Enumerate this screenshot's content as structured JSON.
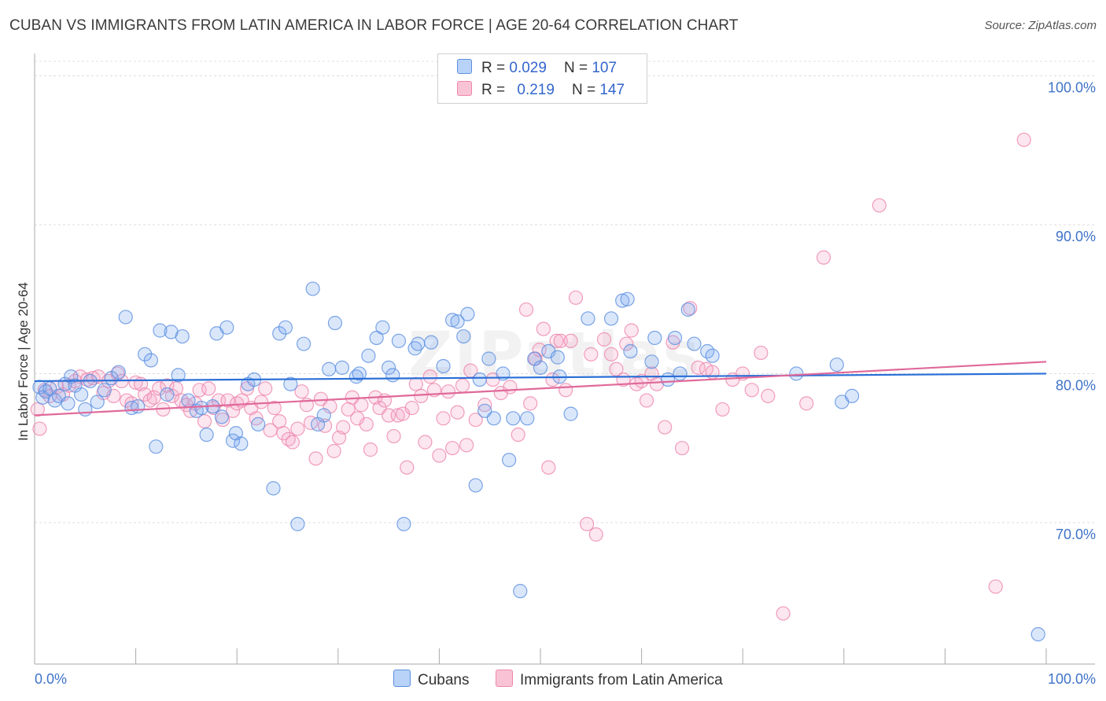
{
  "chart_data": {
    "type": "scatter",
    "title": "CUBAN VS IMMIGRANTS FROM LATIN AMERICA IN LABOR FORCE | AGE 20-64 CORRELATION CHART",
    "source": "Source: ZipAtlas.com",
    "ylabel": "In Labor Force | Age 20-64",
    "watermark": "ZIPatlas",
    "xlim": [
      0,
      100
    ],
    "ylim": [
      60.5,
      101.5
    ],
    "x_tick_labels": [
      "0.0%",
      "100.0%"
    ],
    "y_ticks": [
      {
        "value": 100,
        "label": "100.0%"
      },
      {
        "value": 90,
        "label": "90.0%"
      },
      {
        "value": 80,
        "label": "80.0%"
      },
      {
        "value": 70,
        "label": "70.0%"
      }
    ],
    "grid": true,
    "legend": {
      "placement": "top-center",
      "rows": [
        {
          "r_label": "R =",
          "r_value": "0.029",
          "n_label": "N =",
          "n_value": "107"
        },
        {
          "r_label": "R =",
          "r_value": "0.219",
          "n_label": "N =",
          "n_value": "147"
        }
      ]
    },
    "series": [
      {
        "name": "Cubans",
        "color": "#7aaaf0",
        "stroke": "#5b8fe0",
        "line_color": "#2a6fd6",
        "trend": {
          "x": [
            0,
            100
          ],
          "y": [
            79.5,
            80.0
          ]
        },
        "points": [
          [
            0.5,
            79.1
          ],
          [
            0.8,
            78.4
          ],
          [
            1.1,
            78.8
          ],
          [
            1.5,
            79.0
          ],
          [
            2.0,
            78.2
          ],
          [
            2.4,
            78.5
          ],
          [
            3.0,
            79.3
          ],
          [
            3.3,
            78.0
          ],
          [
            3.6,
            79.8
          ],
          [
            4.0,
            79.2
          ],
          [
            4.6,
            78.6
          ],
          [
            5.0,
            77.6
          ],
          [
            5.5,
            79.5
          ],
          [
            6.2,
            78.1
          ],
          [
            6.9,
            78.9
          ],
          [
            7.6,
            79.7
          ],
          [
            8.3,
            80.1
          ],
          [
            9.0,
            83.8
          ],
          [
            9.6,
            77.7
          ],
          [
            10.2,
            77.8
          ],
          [
            10.9,
            81.3
          ],
          [
            11.5,
            80.9
          ],
          [
            12.0,
            75.1
          ],
          [
            12.4,
            82.9
          ],
          [
            13.1,
            78.6
          ],
          [
            13.5,
            82.8
          ],
          [
            14.2,
            79.9
          ],
          [
            14.6,
            82.5
          ],
          [
            15.2,
            78.2
          ],
          [
            16.0,
            77.5
          ],
          [
            16.5,
            77.7
          ],
          [
            17.0,
            75.9
          ],
          [
            17.6,
            77.8
          ],
          [
            18.0,
            82.7
          ],
          [
            18.5,
            77.1
          ],
          [
            19.0,
            83.1
          ],
          [
            19.6,
            75.5
          ],
          [
            19.9,
            76.0
          ],
          [
            20.4,
            75.3
          ],
          [
            21.1,
            79.3
          ],
          [
            21.7,
            79.6
          ],
          [
            22.1,
            76.6
          ],
          [
            23.6,
            72.3
          ],
          [
            24.2,
            82.7
          ],
          [
            24.8,
            83.1
          ],
          [
            25.3,
            79.3
          ],
          [
            26.0,
            69.9
          ],
          [
            26.6,
            82.0
          ],
          [
            27.5,
            85.7
          ],
          [
            28.0,
            76.6
          ],
          [
            28.6,
            77.2
          ],
          [
            29.1,
            80.3
          ],
          [
            29.7,
            83.4
          ],
          [
            30.4,
            80.4
          ],
          [
            31.8,
            79.8
          ],
          [
            32.1,
            80.0
          ],
          [
            33.0,
            81.2
          ],
          [
            33.8,
            82.4
          ],
          [
            34.4,
            83.1
          ],
          [
            35.0,
            80.4
          ],
          [
            35.4,
            79.9
          ],
          [
            36.0,
            82.2
          ],
          [
            36.5,
            69.9
          ],
          [
            37.6,
            81.7
          ],
          [
            37.9,
            82.0
          ],
          [
            39.2,
            82.1
          ],
          [
            40.4,
            80.5
          ],
          [
            41.3,
            83.6
          ],
          [
            41.8,
            83.5
          ],
          [
            42.4,
            82.5
          ],
          [
            42.8,
            84.0
          ],
          [
            43.6,
            72.5
          ],
          [
            44.0,
            79.6
          ],
          [
            44.5,
            77.5
          ],
          [
            44.9,
            81.0
          ],
          [
            45.4,
            77.0
          ],
          [
            46.3,
            80.0
          ],
          [
            46.9,
            74.2
          ],
          [
            47.3,
            77.0
          ],
          [
            48.0,
            65.4
          ],
          [
            48.7,
            77.0
          ],
          [
            49.4,
            81.0
          ],
          [
            50.0,
            80.4
          ],
          [
            50.8,
            81.5
          ],
          [
            51.7,
            81.1
          ],
          [
            51.9,
            79.8
          ],
          [
            53.0,
            77.3
          ],
          [
            54.7,
            83.7
          ],
          [
            57.0,
            83.7
          ],
          [
            58.1,
            84.9
          ],
          [
            58.6,
            85.0
          ],
          [
            58.9,
            81.5
          ],
          [
            61.0,
            80.8
          ],
          [
            61.3,
            82.4
          ],
          [
            62.6,
            79.6
          ],
          [
            63.3,
            82.4
          ],
          [
            63.8,
            80.0
          ],
          [
            64.6,
            84.3
          ],
          [
            65.2,
            82.0
          ],
          [
            66.5,
            81.5
          ],
          [
            67.0,
            81.2
          ],
          [
            75.3,
            80.0
          ],
          [
            79.3,
            80.6
          ],
          [
            79.8,
            78.1
          ],
          [
            80.8,
            78.5
          ],
          [
            99.2,
            62.5
          ]
        ]
      },
      {
        "name": "Immigrants from Latin America",
        "color": "#f6a6c4",
        "stroke": "#ee86ac",
        "line_color": "#e0699a",
        "trend": {
          "x": [
            0,
            100
          ],
          "y": [
            77.2,
            80.8
          ]
        },
        "points": [
          [
            0.3,
            77.6
          ],
          [
            0.5,
            76.3
          ],
          [
            1.0,
            78.9
          ],
          [
            1.5,
            78.5
          ],
          [
            2.2,
            79.1
          ],
          [
            2.8,
            78.6
          ],
          [
            3.4,
            79.2
          ],
          [
            4.0,
            79.5
          ],
          [
            4.5,
            79.8
          ],
          [
            5.2,
            79.6
          ],
          [
            5.8,
            79.7
          ],
          [
            6.3,
            79.8
          ],
          [
            6.8,
            78.7
          ],
          [
            7.3,
            79.5
          ],
          [
            7.8,
            78.5
          ],
          [
            8.2,
            80.0
          ],
          [
            8.6,
            79.5
          ],
          [
            9.1,
            78.2
          ],
          [
            9.6,
            78.0
          ],
          [
            10.0,
            79.4
          ],
          [
            10.5,
            79.3
          ],
          [
            10.9,
            78.6
          ],
          [
            11.4,
            78.2
          ],
          [
            11.8,
            78.4
          ],
          [
            12.3,
            79.0
          ],
          [
            12.7,
            77.6
          ],
          [
            13.1,
            79.2
          ],
          [
            13.6,
            78.5
          ],
          [
            14.0,
            79.0
          ],
          [
            14.5,
            78.2
          ],
          [
            15.0,
            77.9
          ],
          [
            15.4,
            77.5
          ],
          [
            15.9,
            78.0
          ],
          [
            16.3,
            78.9
          ],
          [
            16.8,
            76.8
          ],
          [
            17.2,
            79.0
          ],
          [
            17.7,
            77.7
          ],
          [
            18.2,
            78.2
          ],
          [
            18.6,
            76.9
          ],
          [
            19.1,
            78.2
          ],
          [
            19.6,
            77.5
          ],
          [
            20.0,
            78.0
          ],
          [
            20.5,
            78.2
          ],
          [
            21.0,
            79.0
          ],
          [
            21.4,
            77.7
          ],
          [
            21.9,
            77.0
          ],
          [
            22.4,
            78.1
          ],
          [
            22.8,
            79.0
          ],
          [
            23.3,
            76.2
          ],
          [
            23.7,
            77.7
          ],
          [
            24.2,
            76.8
          ],
          [
            24.6,
            76.0
          ],
          [
            25.1,
            75.6
          ],
          [
            25.5,
            75.4
          ],
          [
            26.0,
            76.3
          ],
          [
            26.4,
            78.8
          ],
          [
            26.9,
            77.9
          ],
          [
            27.3,
            76.7
          ],
          [
            27.8,
            74.3
          ],
          [
            28.3,
            78.3
          ],
          [
            28.7,
            76.5
          ],
          [
            29.2,
            77.8
          ],
          [
            29.6,
            74.8
          ],
          [
            30.1,
            75.7
          ],
          [
            30.5,
            76.4
          ],
          [
            31.0,
            77.6
          ],
          [
            31.4,
            78.4
          ],
          [
            31.9,
            77.0
          ],
          [
            32.3,
            77.9
          ],
          [
            32.8,
            76.6
          ],
          [
            33.2,
            74.9
          ],
          [
            33.7,
            78.4
          ],
          [
            34.1,
            77.7
          ],
          [
            34.6,
            78.2
          ],
          [
            35.0,
            77.2
          ],
          [
            35.5,
            75.8
          ],
          [
            35.9,
            77.2
          ],
          [
            36.4,
            77.3
          ],
          [
            36.8,
            73.7
          ],
          [
            37.3,
            77.7
          ],
          [
            37.7,
            79.3
          ],
          [
            38.2,
            78.5
          ],
          [
            38.6,
            75.4
          ],
          [
            39.1,
            79.8
          ],
          [
            39.5,
            78.9
          ],
          [
            40.0,
            74.5
          ],
          [
            40.4,
            77.0
          ],
          [
            40.9,
            78.8
          ],
          [
            41.3,
            75.0
          ],
          [
            41.8,
            77.4
          ],
          [
            42.3,
            79.2
          ],
          [
            42.7,
            75.2
          ],
          [
            43.1,
            80.2
          ],
          [
            43.6,
            76.9
          ],
          [
            44.5,
            77.9
          ],
          [
            45.3,
            79.6
          ],
          [
            46.1,
            78.7
          ],
          [
            47.0,
            79.1
          ],
          [
            47.8,
            75.9
          ],
          [
            48.6,
            84.3
          ],
          [
            49.0,
            78.0
          ],
          [
            49.5,
            81.0
          ],
          [
            49.9,
            81.6
          ],
          [
            50.3,
            83.0
          ],
          [
            50.8,
            73.7
          ],
          [
            51.2,
            79.6
          ],
          [
            51.6,
            82.2
          ],
          [
            52.0,
            82.2
          ],
          [
            52.5,
            78.9
          ],
          [
            53.0,
            82.2
          ],
          [
            53.5,
            85.1
          ],
          [
            54.6,
            69.9
          ],
          [
            55.0,
            81.3
          ],
          [
            55.5,
            69.2
          ],
          [
            56.3,
            82.3
          ],
          [
            57.0,
            81.3
          ],
          [
            57.5,
            80.3
          ],
          [
            58.2,
            79.6
          ],
          [
            58.5,
            82.0
          ],
          [
            59.0,
            82.9
          ],
          [
            59.5,
            79.3
          ],
          [
            60.0,
            79.5
          ],
          [
            60.5,
            78.2
          ],
          [
            61.0,
            80.0
          ],
          [
            61.5,
            79.3
          ],
          [
            62.3,
            76.4
          ],
          [
            63.1,
            82.1
          ],
          [
            64.0,
            75.0
          ],
          [
            64.8,
            84.4
          ],
          [
            65.6,
            80.4
          ],
          [
            66.4,
            80.3
          ],
          [
            67.0,
            80.1
          ],
          [
            68.0,
            77.6
          ],
          [
            69.0,
            79.6
          ],
          [
            70.0,
            80.0
          ],
          [
            70.9,
            78.9
          ],
          [
            71.8,
            81.4
          ],
          [
            72.5,
            78.5
          ],
          [
            74.0,
            63.9
          ],
          [
            76.3,
            78.0
          ],
          [
            78.0,
            87.8
          ],
          [
            83.5,
            91.3
          ],
          [
            95.0,
            65.7
          ],
          [
            97.8,
            95.7
          ]
        ]
      }
    ]
  },
  "bottom_legend": [
    {
      "label": "Cubans",
      "color": "#b8d3f7",
      "stroke": "#5b8fe0"
    },
    {
      "label": "Immigrants from Latin America",
      "color": "#f9c3d6",
      "stroke": "#ee86ac"
    }
  ]
}
